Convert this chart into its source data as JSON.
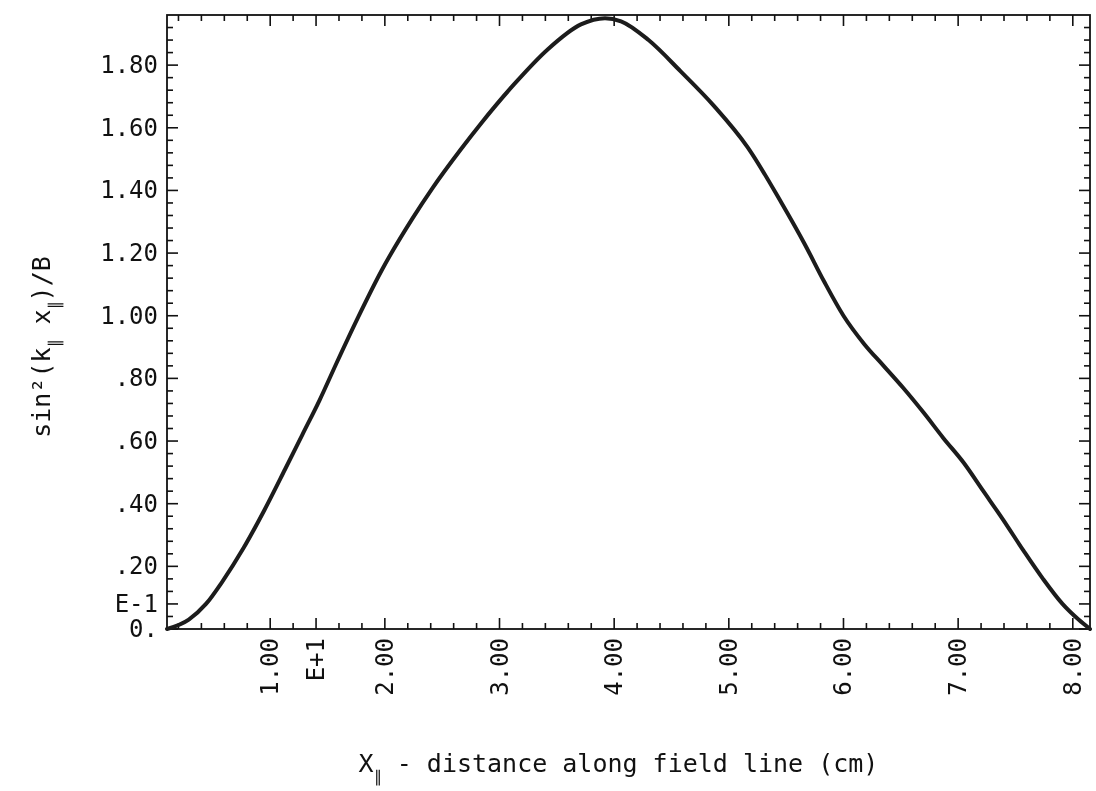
{
  "chart_data": {
    "type": "line",
    "xlabel": "X$_{∥}$ - distance along field line (cm)",
    "ylabel": "sin²(k$_{∥}$ x$_{∥}$)/B",
    "x": [
      0.1,
      0.29,
      0.44,
      0.58,
      0.77,
      0.95,
      1.13,
      1.28,
      1.43,
      1.58,
      1.76,
      1.98,
      2.24,
      2.42,
      2.66,
      2.83,
      3.13,
      3.42,
      3.71,
      3.92,
      4.06,
      4.3,
      4.58,
      4.87,
      5.16,
      5.46,
      5.66,
      5.83,
      6.0,
      6.18,
      6.35,
      6.52,
      6.7,
      6.87,
      7.05,
      7.22,
      7.39,
      7.57,
      7.74,
      7.91,
      8.05,
      8.15
    ],
    "values": [
      0,
      0.03,
      0.08,
      0.15,
      0.26,
      0.38,
      0.51,
      0.62,
      0.73,
      0.85,
      0.99,
      1.15,
      1.31,
      1.41,
      1.53,
      1.61,
      1.74,
      1.85,
      1.93,
      1.95,
      1.94,
      1.88,
      1.78,
      1.67,
      1.54,
      1.36,
      1.23,
      1.11,
      1.0,
      0.91,
      0.84,
      0.77,
      0.69,
      0.61,
      0.53,
      0.44,
      0.35,
      0.25,
      0.16,
      0.08,
      0.03,
      0
    ],
    "color": "#1c1c1c",
    "line_style": "solid",
    "xlim": [
      0.1,
      8.15
    ],
    "ylim": [
      0,
      1.96
    ],
    "xticks": [
      {
        "value": 0.2,
        "label": null
      },
      {
        "value": 0.4,
        "label": null
      },
      {
        "value": 0.6,
        "label": null
      },
      {
        "value": 0.8,
        "label": null
      },
      {
        "value": 1,
        "label": "1.00"
      },
      {
        "value": 1.2,
        "label": null
      },
      {
        "value": 1.4,
        "label": "E+1"
      },
      {
        "value": 1.6,
        "label": null
      },
      {
        "value": 1.8,
        "label": null
      },
      {
        "value": 2,
        "label": "2.00"
      },
      {
        "value": 2.2,
        "label": null
      },
      {
        "value": 2.4,
        "label": null
      },
      {
        "value": 2.6,
        "label": null
      },
      {
        "value": 2.8,
        "label": null
      },
      {
        "value": 3,
        "label": "3.00"
      },
      {
        "value": 3.2,
        "label": null
      },
      {
        "value": 3.4,
        "label": null
      },
      {
        "value": 3.6,
        "label": null
      },
      {
        "value": 3.8,
        "label": null
      },
      {
        "value": 4,
        "label": "4.00"
      },
      {
        "value": 4.2,
        "label": null
      },
      {
        "value": 4.4,
        "label": null
      },
      {
        "value": 4.6,
        "label": null
      },
      {
        "value": 4.8,
        "label": null
      },
      {
        "value": 5,
        "label": "5.00"
      },
      {
        "value": 5.2,
        "label": null
      },
      {
        "value": 5.4,
        "label": null
      },
      {
        "value": 5.6,
        "label": null
      },
      {
        "value": 5.8,
        "label": null
      },
      {
        "value": 6,
        "label": "6.00"
      },
      {
        "value": 6.2,
        "label": null
      },
      {
        "value": 6.4,
        "label": null
      },
      {
        "value": 6.6,
        "label": null
      },
      {
        "value": 6.8,
        "label": null
      },
      {
        "value": 7,
        "label": "7.00"
      },
      {
        "value": 7.2,
        "label": null
      },
      {
        "value": 7.4,
        "label": null
      },
      {
        "value": 7.6,
        "label": null
      },
      {
        "value": 7.8,
        "label": null
      },
      {
        "value": 8,
        "label": "8.00"
      }
    ],
    "yticks": [
      {
        "value": 0,
        "label": "0."
      },
      {
        "value": 0.04,
        "label": null
      },
      {
        "value": 0.08,
        "label": "E-1"
      },
      {
        "value": 0.12,
        "label": null
      },
      {
        "value": 0.16,
        "label": null
      },
      {
        "value": 0.2,
        "label": ".20"
      },
      {
        "value": 0.24,
        "label": null
      },
      {
        "value": 0.28,
        "label": null
      },
      {
        "value": 0.32,
        "label": null
      },
      {
        "value": 0.36,
        "label": null
      },
      {
        "value": 0.4,
        "label": ".40"
      },
      {
        "value": 0.44,
        "label": null
      },
      {
        "value": 0.48,
        "label": null
      },
      {
        "value": 0.52,
        "label": null
      },
      {
        "value": 0.56,
        "label": null
      },
      {
        "value": 0.6,
        "label": ".60"
      },
      {
        "value": 0.64,
        "label": null
      },
      {
        "value": 0.68,
        "label": null
      },
      {
        "value": 0.72,
        "label": null
      },
      {
        "value": 0.76,
        "label": null
      },
      {
        "value": 0.8,
        "label": ".80"
      },
      {
        "value": 0.84,
        "label": null
      },
      {
        "value": 0.88,
        "label": null
      },
      {
        "value": 0.92,
        "label": null
      },
      {
        "value": 0.96,
        "label": null
      },
      {
        "value": 1,
        "label": "1.00"
      },
      {
        "value": 1.04,
        "label": null
      },
      {
        "value": 1.08,
        "label": null
      },
      {
        "value": 1.12,
        "label": null
      },
      {
        "value": 1.16,
        "label": null
      },
      {
        "value": 1.2,
        "label": "1.20"
      },
      {
        "value": 1.24,
        "label": null
      },
      {
        "value": 1.28,
        "label": null
      },
      {
        "value": 1.32,
        "label": null
      },
      {
        "value": 1.36,
        "label": null
      },
      {
        "value": 1.4,
        "label": "1.40"
      },
      {
        "value": 1.44,
        "label": null
      },
      {
        "value": 1.48,
        "label": null
      },
      {
        "value": 1.52,
        "label": null
      },
      {
        "value": 1.56,
        "label": null
      },
      {
        "value": 1.6,
        "label": "1.60"
      },
      {
        "value": 1.64,
        "label": null
      },
      {
        "value": 1.68,
        "label": null
      },
      {
        "value": 1.72,
        "label": null
      },
      {
        "value": 1.76,
        "label": null
      },
      {
        "value": 1.8,
        "label": "1.80"
      },
      {
        "value": 1.84,
        "label": null
      },
      {
        "value": 1.88,
        "label": null
      },
      {
        "value": 1.92,
        "label": null
      }
    ]
  }
}
